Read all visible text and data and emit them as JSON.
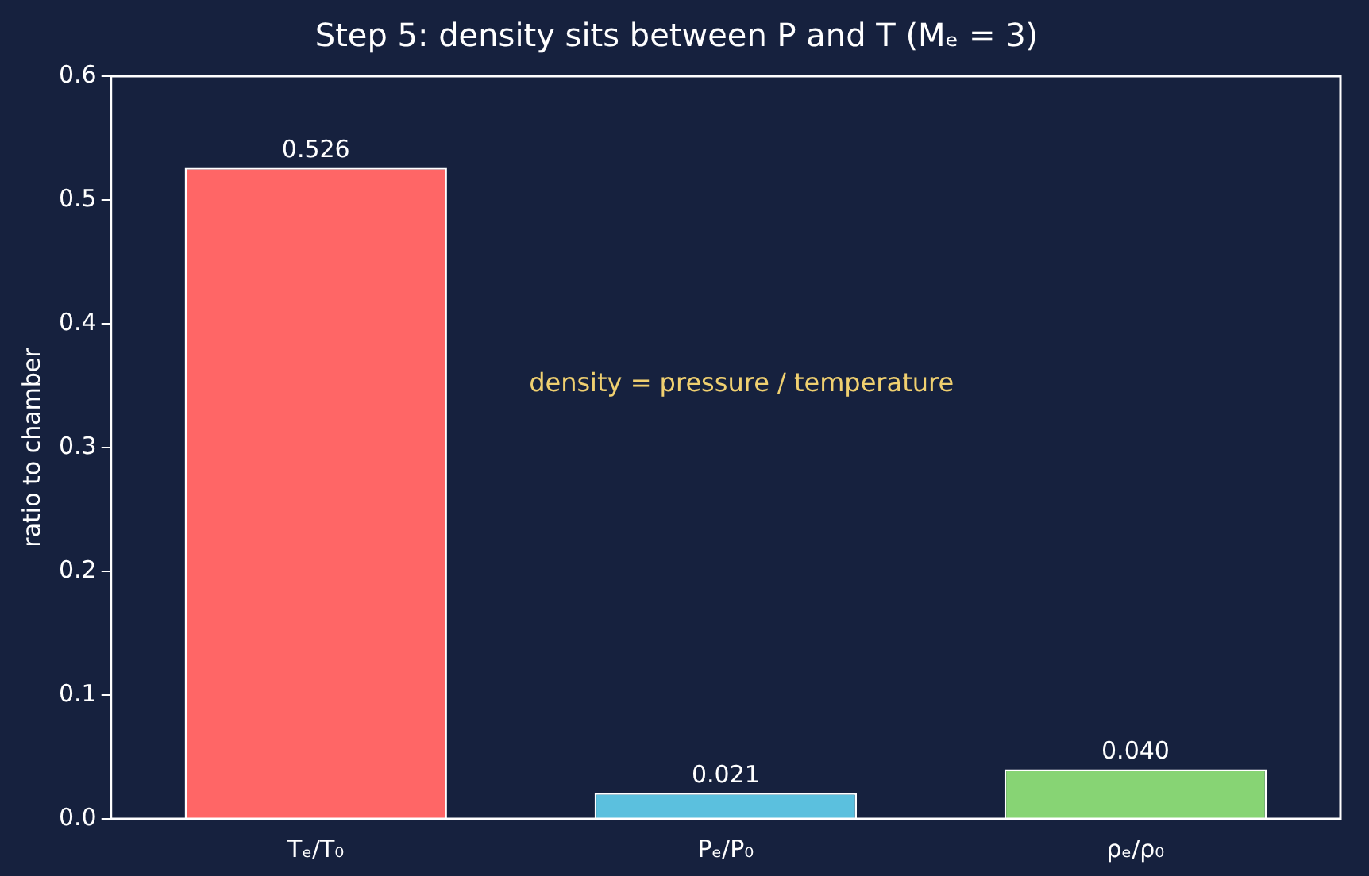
{
  "chart_data": {
    "type": "bar",
    "title": "Step 5: density sits between P and T (Mₑ = 3)",
    "ylabel": "ratio to chamber",
    "categories": [
      "Tₑ/T₀",
      "Pₑ/P₀",
      "ρₑ/ρ₀"
    ],
    "values": [
      0.526,
      0.021,
      0.04
    ],
    "colors": [
      "#ff6666",
      "#5bc0de",
      "#87d474"
    ],
    "value_labels": [
      "0.526",
      "0.021",
      "0.040"
    ],
    "ylim": [
      0,
      0.6
    ],
    "yticks": [
      {
        "value": 0,
        "label": "0.0"
      },
      0.1,
      0.2,
      0.3,
      0.4,
      0.5,
      0.6
    ],
    "annotations": [
      "density = pressure / temperature"
    ],
    "grid": false,
    "legend": false
  }
}
